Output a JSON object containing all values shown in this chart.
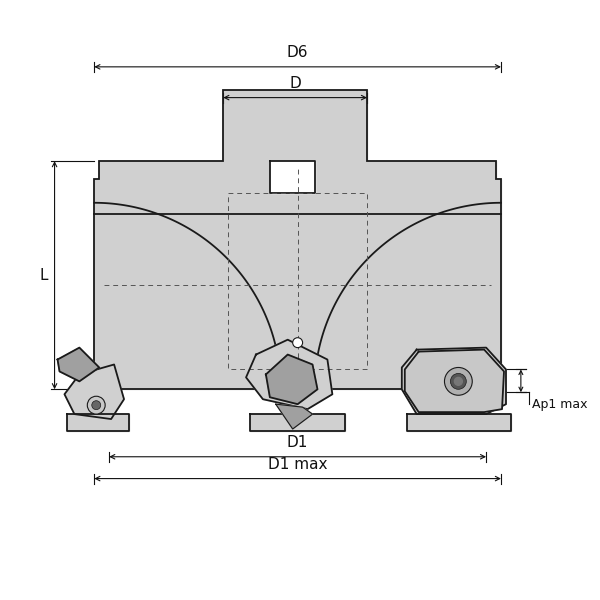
{
  "bg_color": "#ffffff",
  "line_color": "#1a1a1a",
  "fill_color": "#d0d0d0",
  "fill_dark": "#b8b8b8",
  "insert_color": "#c8c8c8",
  "insert_dark": "#a0a0a0",
  "dashed_color": "#555555",
  "anno_color": "#111111",
  "figsize": [
    6.0,
    6.0
  ],
  "dpi": 100,
  "labels": {
    "D6": "D6",
    "D": "D",
    "D1": "D1",
    "D1max": "D1 max",
    "L": "L",
    "Ap1max": "Ap1 max"
  }
}
